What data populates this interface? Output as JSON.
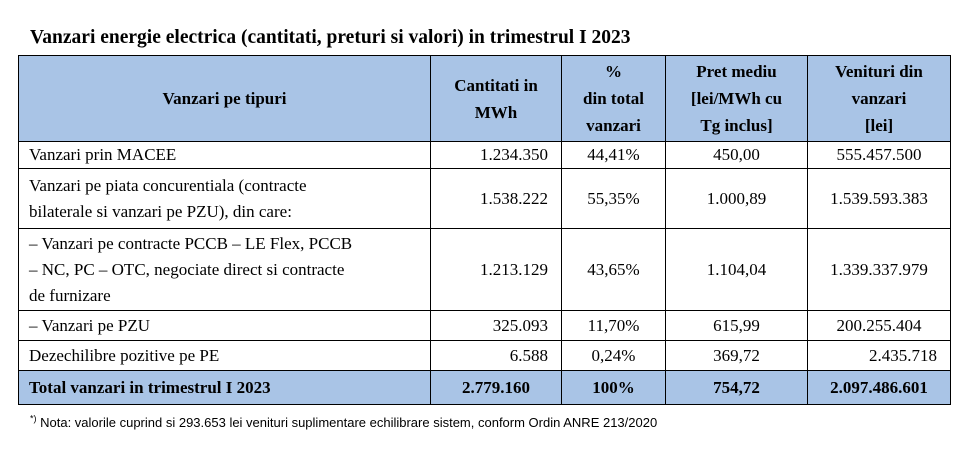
{
  "title": "Vanzari energie electrica (cantitati, preturi si valori) in trimestrul I 2023",
  "table": {
    "headers": [
      [
        "Vanzari pe tipuri"
      ],
      [
        "Cantitati in",
        "MWh"
      ],
      [
        "%",
        "din total",
        "vanzari"
      ],
      [
        "Pret mediu",
        "[lei/MWh cu",
        "Tg inclus]"
      ],
      [
        "Venituri din",
        "vanzari",
        "[lei]"
      ]
    ],
    "rows": [
      {
        "label": [
          "Vanzari prin MACEE"
        ],
        "quantity": "1.234.350",
        "percent": "44,41%",
        "price": "450,00",
        "revenue": "555.457.500"
      },
      {
        "label": [
          "Vanzari pe piata concurentiala (contracte",
          "bilaterale si vanzari pe PZU), din care:"
        ],
        "quantity": "1.538.222",
        "percent": "55,35%",
        "price": "1.000,89",
        "revenue": "1.539.593.383"
      },
      {
        "label": [
          "– Vanzari pe contracte PCCB – LE Flex, PCCB",
          "– NC, PC – OTC, negociate direct si contracte",
          "de furnizare"
        ],
        "quantity": "1.213.129",
        "percent": "43,65%",
        "price": "1.104,04",
        "revenue": "1.339.337.979"
      },
      {
        "label": [
          "– Vanzari pe PZU"
        ],
        "quantity": "325.093",
        "percent": "11,70%",
        "price": "615,99",
        "revenue": "200.255.404"
      },
      {
        "label": [
          "Dezechilibre pozitive pe PE"
        ],
        "quantity": "6.588",
        "percent": "0,24%",
        "price": "369,72",
        "revenue": "2.435.718"
      }
    ],
    "total": {
      "label": "Total vanzari in trimestrul I 2023",
      "quantity": "2.779.160",
      "percent": "100%",
      "price": "754,72",
      "revenue": "2.097.486.601"
    }
  },
  "note": {
    "marker": "*)",
    "text": " Nota: valorile cuprind si 293.653 lei venituri suplimentare echilibrare sistem, conform Ordin ANRE 213/2020"
  }
}
